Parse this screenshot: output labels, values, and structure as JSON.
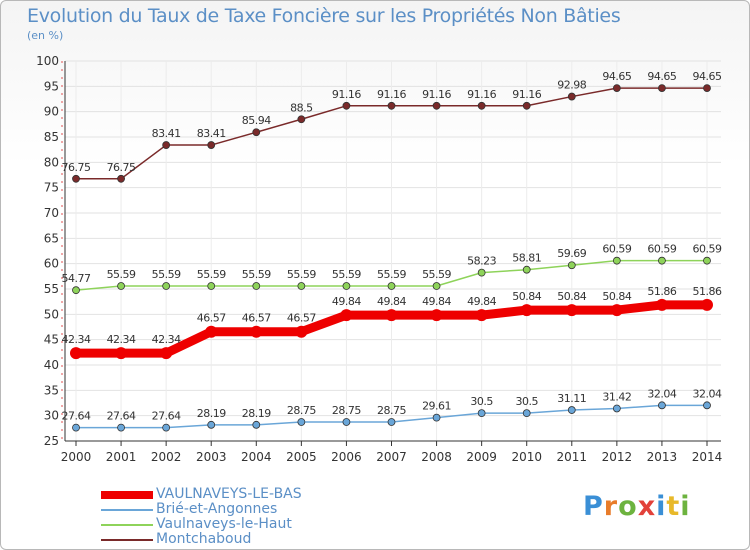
{
  "title": "Evolution du Taux de Taxe Foncière sur les Propriétés Non Bâties",
  "unit_label": "(en %)",
  "brand": {
    "logo_text": "Proxiti",
    "logo_colors": [
      "#3a8fd6",
      "#e87c2a",
      "#6db33f",
      "#e2413a",
      "#3a8fd6",
      "#e8b92a",
      "#6db33f"
    ]
  },
  "chart_data": {
    "type": "line",
    "title": "Evolution du Taux de Taxe Foncière sur les Propriétés Non Bâties",
    "ylabel": "(en %)",
    "xlabel": "",
    "x": [
      "2000",
      "2001",
      "2002",
      "2003",
      "2004",
      "2005",
      "2006",
      "2007",
      "2008",
      "2009",
      "2010",
      "2011",
      "2012",
      "2013",
      "2014"
    ],
    "ylim": [
      25,
      100
    ],
    "yticks": [
      25,
      30,
      35,
      40,
      45,
      50,
      55,
      60,
      65,
      70,
      75,
      80,
      85,
      90,
      95,
      100
    ],
    "grid": true,
    "series": [
      {
        "name": "Montchaboud",
        "color": "#7a2a2a",
        "emphasis": false,
        "values": [
          76.75,
          76.75,
          83.41,
          83.41,
          85.94,
          88.5,
          91.16,
          91.16,
          91.16,
          91.16,
          91.16,
          92.98,
          94.65,
          94.65,
          94.65
        ],
        "labels": [
          "76.75",
          "76.75",
          "83.41",
          "83.41",
          "85.94",
          "88.5",
          "91.16",
          "91.16",
          "91.16",
          "91.16",
          "91.16",
          "92.98",
          "94.65",
          "94.65",
          "94.65"
        ]
      },
      {
        "name": "Vaulnaveys-le-Haut",
        "color": "#8ed35a",
        "emphasis": false,
        "values": [
          54.77,
          55.59,
          55.59,
          55.59,
          55.59,
          55.59,
          55.59,
          55.59,
          55.59,
          58.23,
          58.81,
          59.69,
          60.59,
          60.59,
          60.59
        ],
        "labels": [
          "54.77",
          "55.59",
          "55.59",
          "55.59",
          "55.59",
          "55.59",
          "55.59",
          "55.59",
          "55.59",
          "58.23",
          "58.81",
          "59.69",
          "60.59",
          "60.59",
          "60.59"
        ]
      },
      {
        "name": "VAULNAVEYS-LE-BAS",
        "color": "#ee0000",
        "emphasis": true,
        "values": [
          42.34,
          42.34,
          42.34,
          46.57,
          46.57,
          46.57,
          49.84,
          49.84,
          49.84,
          49.84,
          50.84,
          50.84,
          50.84,
          51.86,
          51.86
        ],
        "labels": [
          "42.34",
          "42.34",
          "42.34",
          "46.57",
          "46.57",
          "46.57",
          "49.84",
          "49.84",
          "49.84",
          "49.84",
          "50.84",
          "50.84",
          "50.84",
          "51.86",
          "51.86"
        ]
      },
      {
        "name": "Brié-et-Angonnes",
        "color": "#6aa6d8",
        "emphasis": false,
        "values": [
          27.64,
          27.64,
          27.64,
          28.19,
          28.19,
          28.75,
          28.75,
          28.75,
          29.61,
          30.5,
          30.5,
          31.11,
          31.42,
          32.04,
          32.04
        ],
        "labels": [
          "27.64",
          "27.64",
          "27.64",
          "28.19",
          "28.19",
          "28.75",
          "28.75",
          "28.75",
          "29.61",
          "30.5",
          "30.5",
          "31.11",
          "31.42",
          "32.04",
          "32.04"
        ]
      }
    ],
    "legend_order": [
      "VAULNAVEYS-LE-BAS",
      "Brié-et-Angonnes",
      "Vaulnaveys-le-Haut",
      "Montchaboud"
    ]
  },
  "legend": {
    "items": [
      {
        "label": "VAULNAVEYS-LE-BAS",
        "color": "#ee0000",
        "thick": true
      },
      {
        "label": "Brié-et-Angonnes",
        "color": "#6aa6d8",
        "thick": false
      },
      {
        "label": "Vaulnaveys-le-Haut",
        "color": "#8ed35a",
        "thick": false
      },
      {
        "label": "Montchaboud",
        "color": "#7a2a2a",
        "thick": false
      }
    ]
  }
}
